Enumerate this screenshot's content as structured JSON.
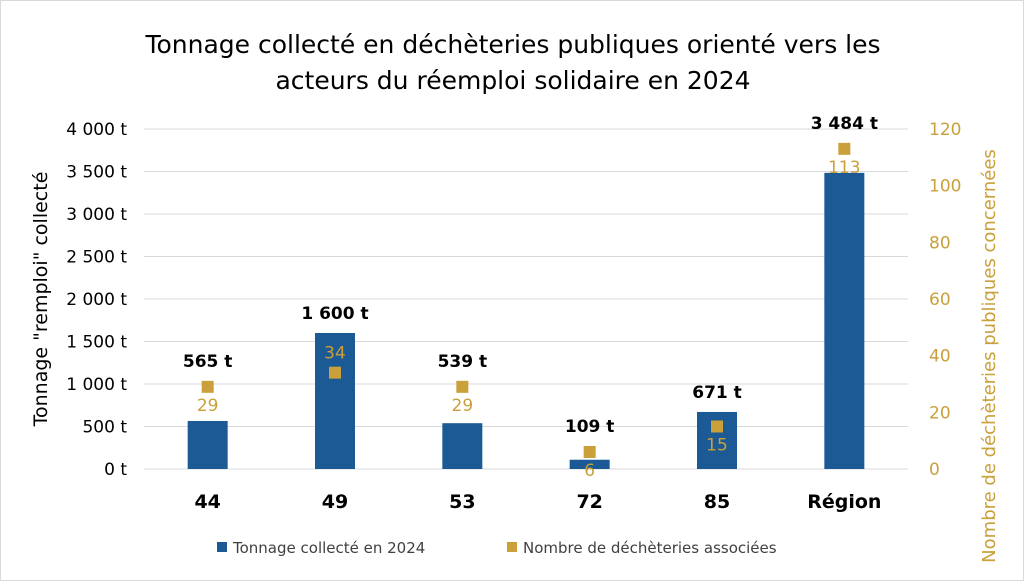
{
  "chart_data": {
    "type": "bar",
    "title_lines": [
      "Tonnage collecté en déchèteries publiques orienté vers les",
      "acteurs du réemploi solidaire en 2024"
    ],
    "categories": [
      "44",
      "49",
      "53",
      "72",
      "85",
      "Région"
    ],
    "series": [
      {
        "name": "Tonnage collecté en 2024",
        "type": "bar",
        "axis": "left",
        "values": [
          565,
          1600,
          539,
          109,
          671,
          3484
        ],
        "data_labels": [
          "565 t",
          "1 600 t",
          "539 t",
          "109 t",
          "671 t",
          "3 484 t"
        ],
        "color": "#1C5A96"
      },
      {
        "name": "Nombre de déchèteries associées",
        "type": "marker",
        "axis": "right",
        "values": [
          29,
          34,
          29,
          6,
          15,
          113
        ],
        "data_labels": [
          "29",
          "34",
          "29",
          "6",
          "15",
          "113"
        ],
        "color": "#C9A03A"
      }
    ],
    "ylabel": "Tonnage \"remploi\" collecté",
    "y2label": "Nombre de déchèteries publiques concernées",
    "ylim": [
      0,
      4000
    ],
    "y2lim": [
      0,
      120
    ],
    "yticks": [
      0,
      500,
      1000,
      1500,
      2000,
      2500,
      3000,
      3500,
      4000
    ],
    "ytick_labels": [
      "0 t",
      "500 t",
      "1 000 t",
      "1 500 t",
      "2 000 t",
      "2 500 t",
      "3 000 t",
      "3 500 t",
      "4 000 t"
    ],
    "y2ticks": [
      0,
      20,
      40,
      60,
      80,
      100,
      120
    ],
    "y2tick_labels": [
      "0",
      "20",
      "40",
      "60",
      "80",
      "100",
      "120"
    ],
    "grid": true,
    "legend_position": "bottom",
    "colors": {
      "axis_label": "#000000",
      "right_axis": "#C9A03A",
      "grid": "#d9d9d9"
    }
  }
}
